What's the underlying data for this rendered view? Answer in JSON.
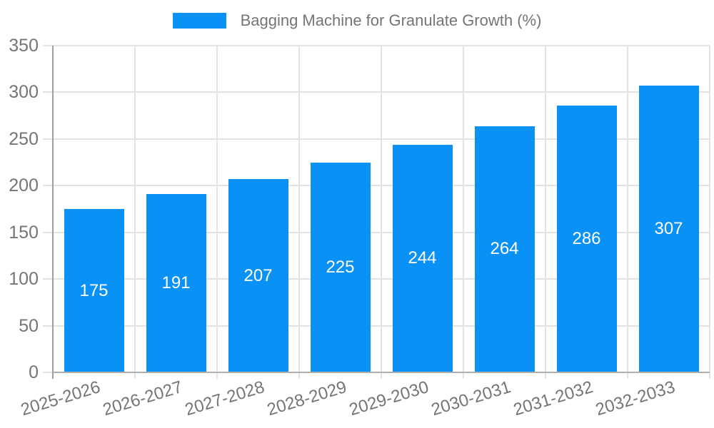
{
  "chart_data": {
    "type": "bar",
    "title": "Bagging Machine for Granulate Growth (%)",
    "categories": [
      "2025-2026",
      "2026-2027",
      "2027-2028",
      "2028-2029",
      "2029-2030",
      "2030-2031",
      "2031-2032",
      "2032-2033"
    ],
    "values": [
      175,
      191,
      207,
      225,
      244,
      264,
      286,
      307
    ],
    "y_ticks": [
      0,
      50,
      100,
      150,
      200,
      250,
      300,
      350
    ],
    "ylim": [
      0,
      350
    ],
    "xlabel": "",
    "ylabel": "",
    "legend_position": "top",
    "grid": true,
    "x_label_rotation_deg": -17,
    "colors": {
      "bar": "#0991F5",
      "value_label": "#FFFFFF",
      "axis_label": "#757575",
      "legend_text": "#757575",
      "gridline": "#E3E3E3",
      "axis_line": "#9E9E9E",
      "baseline": "#B0B0B0",
      "background": "#FFFFFF"
    }
  }
}
